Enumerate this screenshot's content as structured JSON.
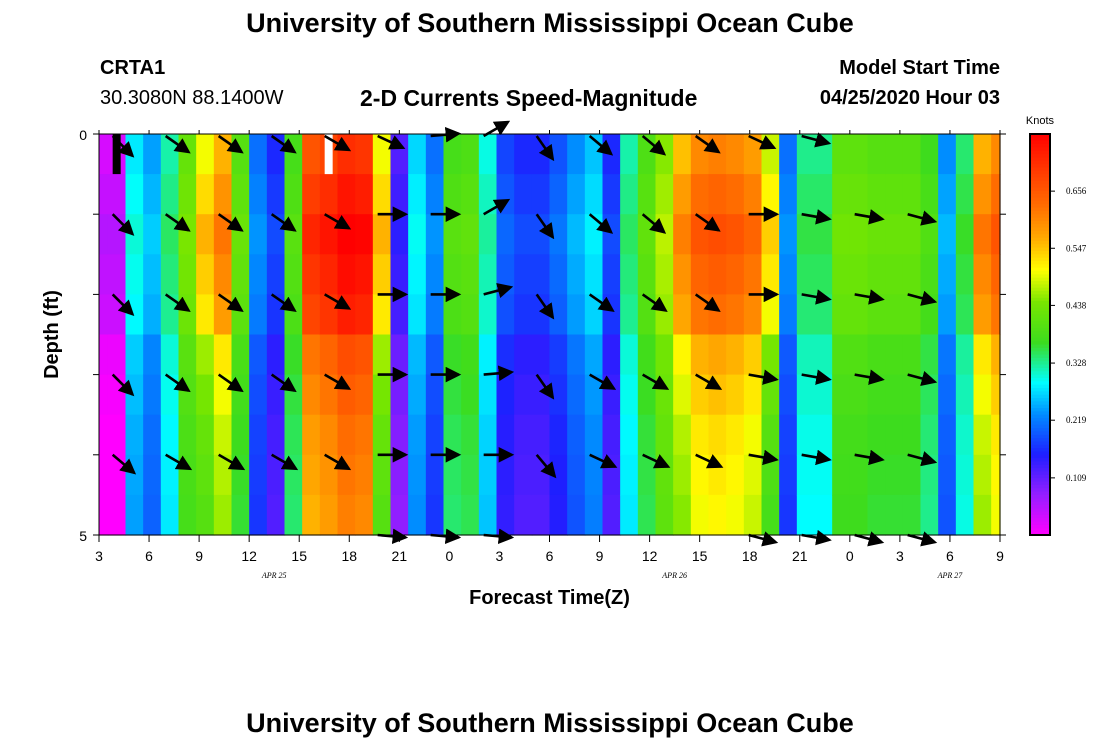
{
  "page": {
    "title": "University of Southern Mississippi Ocean Cube",
    "footer_title": "University of Southern Mississippi Ocean Cube",
    "station_id": "CRTA1",
    "station_coords": "30.3080N 88.1400W",
    "plot_title": "2-D Currents Speed-Magnitude",
    "model_start_label": "Model Start Time",
    "model_start_value": "04/25/2020 Hour 03"
  },
  "chart_data": {
    "type": "heatmap",
    "title": "2-D Currents Speed-Magnitude",
    "xlabel": "Forecast Time(Z)",
    "ylabel": "Depth (ft)",
    "y_ticks": [
      "0",
      "5"
    ],
    "y_range": [
      0,
      5
    ],
    "x_tick_labels": [
      "3",
      "6",
      "9",
      "12",
      "15",
      "18",
      "21",
      "0",
      "3",
      "6",
      "9",
      "12",
      "15",
      "18",
      "21",
      "0",
      "3",
      "6",
      "9"
    ],
    "date_labels": [
      {
        "text": "APR  25",
        "tick_index": 3.5
      },
      {
        "text": "APR  26",
        "tick_index": 11.5
      },
      {
        "text": "APR  27",
        "tick_index": 17
      }
    ],
    "colorbar": {
      "label": "Knots",
      "min": 0.0,
      "max": 0.765,
      "ticks": [
        "0.656",
        "0.547",
        "0.438",
        "0.328",
        "0.219",
        "0.109"
      ],
      "tick_values": [
        0.656,
        0.547,
        0.438,
        0.328,
        0.219,
        0.109
      ]
    },
    "hours": [
      3,
      4,
      5,
      6,
      7,
      8,
      9,
      10,
      11,
      12,
      13,
      14,
      15,
      16,
      17,
      18,
      19,
      20,
      21,
      22,
      23,
      24,
      25,
      26,
      27,
      28,
      29,
      30,
      31,
      32,
      33,
      34,
      35,
      36,
      37,
      38,
      39,
      40,
      41,
      42,
      43,
      44,
      45,
      46,
      47,
      48,
      49,
      50,
      51,
      52,
      53,
      54
    ],
    "speed_knots": [
      0.03,
      0.03,
      0.28,
      0.24,
      0.32,
      0.42,
      0.5,
      0.56,
      0.4,
      0.21,
      0.16,
      0.38,
      0.66,
      0.68,
      0.71,
      0.7,
      0.5,
      0.12,
      0.27,
      0.21,
      0.38,
      0.39,
      0.3,
      0.18,
      0.16,
      0.16,
      0.19,
      0.23,
      0.26,
      0.16,
      0.32,
      0.39,
      0.45,
      0.55,
      0.6,
      0.61,
      0.6,
      0.58,
      0.48,
      0.21,
      0.33,
      0.33,
      0.41,
      0.41,
      0.4,
      0.4,
      0.4,
      0.37,
      0.23,
      0.34,
      0.56,
      0.6
    ],
    "depth_variation": [
      0.0,
      0.03,
      0.06,
      0.04,
      0.02,
      -0.04,
      -0.06,
      -0.08,
      -0.09,
      -0.1
    ],
    "vector_hours": [
      4,
      7,
      10,
      13,
      16,
      19,
      22,
      25,
      28,
      31,
      34,
      37,
      40,
      43,
      46,
      49
    ],
    "vector_depth_rows": [
      0,
      1,
      2,
      3,
      4,
      5
    ],
    "vector_directions_deg": [
      -45,
      -35,
      -35,
      -35,
      -30,
      -25,
      0,
      30,
      -55,
      -40,
      -40,
      -35,
      -25,
      -15,
      -10,
      -20
    ],
    "vector_direction_by_row": [
      [
        -45,
        -35,
        -35,
        -35,
        -30,
        -25,
        5,
        30,
        -55,
        -40,
        -40,
        -35,
        -25,
        -15,
        null,
        null
      ],
      [
        -45,
        -35,
        -35,
        -35,
        -30,
        0,
        0,
        30,
        -55,
        -40,
        -40,
        -35,
        0,
        -10,
        -10,
        -15
      ],
      [
        -45,
        -35,
        -35,
        -35,
        -30,
        0,
        0,
        15,
        -55,
        -35,
        -35,
        -35,
        0,
        -10,
        -10,
        -15
      ],
      [
        -45,
        -35,
        -35,
        -35,
        -30,
        0,
        0,
        5,
        -55,
        -30,
        -30,
        -30,
        -10,
        -10,
        -10,
        -15
      ],
      [
        -40,
        -30,
        -30,
        -30,
        -30,
        0,
        0,
        0,
        -50,
        -25,
        -25,
        -25,
        -10,
        -10,
        -10,
        -15
      ],
      [
        null,
        null,
        null,
        null,
        null,
        -5,
        -5,
        -5,
        null,
        null,
        null,
        null,
        -15,
        -10,
        -15,
        -15
      ]
    ],
    "missing_marks": [
      {
        "hour": 4,
        "color": "black",
        "depth_to": 0.5
      },
      {
        "hour": 16,
        "color": "white",
        "depth_to": 0.5
      }
    ]
  }
}
